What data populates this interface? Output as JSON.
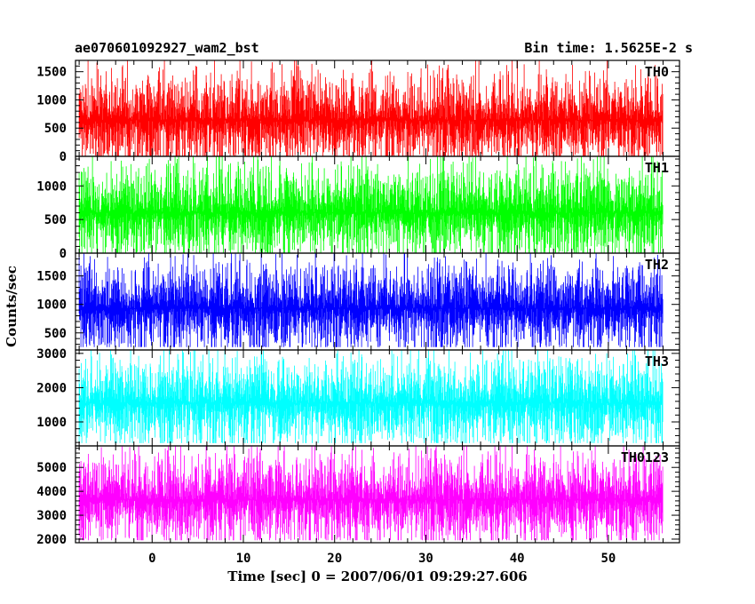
{
  "chart_data": {
    "type": "line",
    "title_left": "ae070601092927_wam2_bst",
    "title_right": "Bin time: 1.5625E-2 s",
    "xlabel": "Time [sec] 0 = 2007/06/01 09:29:27.606",
    "ylabel": "Counts/sec",
    "xlim": [
      -8.4,
      57.8
    ],
    "xticks": [
      0,
      10,
      20,
      30,
      40,
      50
    ],
    "x_range_data": [
      -8.0,
      56.0
    ],
    "bin_time": 0.015625,
    "panels": [
      {
        "name": "TH0",
        "color": "#ff0000",
        "ylim": [
          0,
          1700
        ],
        "yticks": [
          0,
          500,
          1000,
          1500
        ],
        "mean": 640,
        "low": 0,
        "high": 1700
      },
      {
        "name": "TH1",
        "color": "#00ff00",
        "ylim": [
          0,
          1440
        ],
        "yticks": [
          0,
          500,
          1000
        ],
        "mean": 600,
        "low": 0,
        "high": 1440
      },
      {
        "name": "TH2",
        "color": "#0000ff",
        "ylim": [
          200,
          1900
        ],
        "yticks": [
          500,
          1000,
          1500
        ],
        "mean": 930,
        "low": 250,
        "high": 1900
      },
      {
        "name": "TH3",
        "color": "#00ffff",
        "ylim": [
          300,
          3100
        ],
        "yticks": [
          1000,
          2000,
          3000
        ],
        "mean": 1550,
        "low": 380,
        "high": 3100
      },
      {
        "name": "TH0123",
        "color": "#ff00ff",
        "ylim": [
          1850,
          5900
        ],
        "yticks": [
          2000,
          3000,
          4000,
          5000
        ],
        "mean": 3650,
        "low": 1950,
        "high": 5900
      }
    ]
  }
}
